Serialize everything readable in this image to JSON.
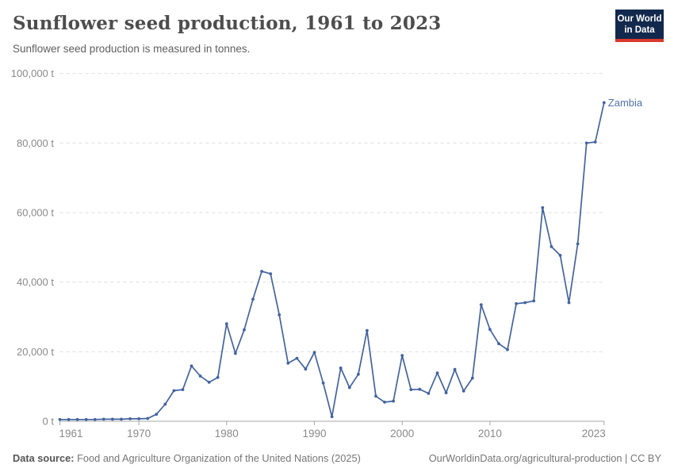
{
  "header": {
    "title": "Sunflower seed production, 1961 to 2023",
    "subtitle": "Sunflower seed production is measured in tonnes.",
    "logo_line1": "Our World",
    "logo_line2": "in Data"
  },
  "chart_data": {
    "type": "line",
    "title": "Sunflower seed production, 1961 to 2023",
    "unit": "tonnes",
    "xlabel": "",
    "ylabel": "",
    "xlim": [
      1961,
      2023
    ],
    "ylim": [
      0,
      100000
    ],
    "grid": "horizontal-dashed",
    "legend_position": "end-of-line-label",
    "yticks": [
      0,
      20000,
      40000,
      60000,
      80000,
      100000
    ],
    "ytick_labels": [
      "0 t",
      "20,000 t",
      "40,000 t",
      "60,000 t",
      "80,000 t",
      "100,000 t"
    ],
    "xticks": [
      1961,
      1970,
      1980,
      1990,
      2000,
      2010,
      2023
    ],
    "series": [
      {
        "name": "Zambia",
        "color": "#43639f",
        "label_color": "#4f71ab",
        "x": [
          1961,
          1962,
          1963,
          1964,
          1965,
          1966,
          1967,
          1968,
          1969,
          1970,
          1971,
          1972,
          1973,
          1974,
          1975,
          1976,
          1977,
          1978,
          1979,
          1980,
          1981,
          1982,
          1983,
          1984,
          1985,
          1986,
          1987,
          1988,
          1989,
          1990,
          1991,
          1992,
          1993,
          1994,
          1995,
          1996,
          1997,
          1998,
          1999,
          2000,
          2001,
          2002,
          2003,
          2004,
          2005,
          2006,
          2007,
          2008,
          2009,
          2010,
          2011,
          2012,
          2013,
          2014,
          2015,
          2016,
          2017,
          2018,
          2019,
          2020,
          2021,
          2022,
          2023
        ],
        "values": [
          500,
          500,
          500,
          500,
          500,
          600,
          600,
          600,
          700,
          700,
          800,
          2000,
          4900,
          8800,
          9100,
          15900,
          13000,
          11200,
          12600,
          28000,
          19500,
          26300,
          35100,
          43100,
          42400,
          30600,
          16700,
          18100,
          15000,
          19800,
          11000,
          1300,
          15300,
          9700,
          13500,
          26100,
          7200,
          5500,
          5800,
          18900,
          9100,
          9200,
          8000,
          13900,
          8200,
          14900,
          8700,
          12400,
          33500,
          26400,
          22300,
          20600,
          33800,
          34100,
          34600,
          61400,
          50200,
          47700,
          34100,
          51000,
          80000,
          80300,
          91600
        ]
      }
    ],
    "colors": {
      "grid": "#dedede",
      "axis": "#a5a5a5",
      "tick_text": "#8a8a8a"
    }
  },
  "footer": {
    "datasource_label": "Data source:",
    "datasource_text": "Food and Agriculture Organization of the United Nations (2025)",
    "right_text": "OurWorldinData.org/agricultural-production | CC BY"
  }
}
